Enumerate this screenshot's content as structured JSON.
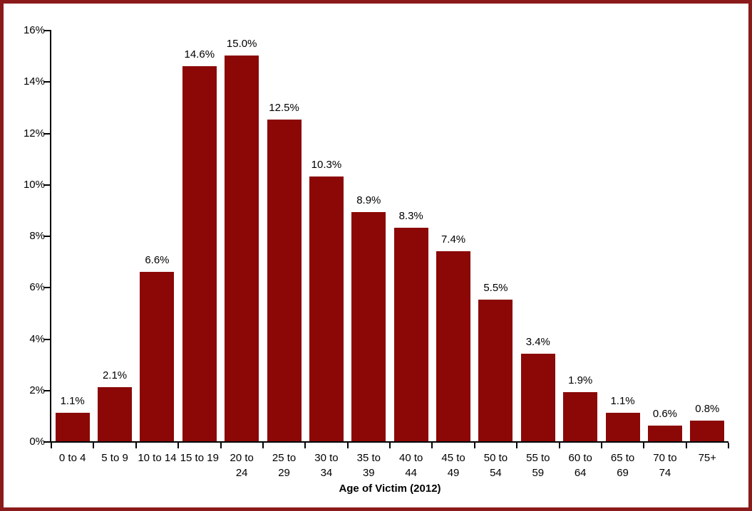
{
  "frame": {
    "border_color": "#8B1B1B",
    "background_color": "#FFFFFF"
  },
  "chart_data": {
    "type": "bar",
    "title": "",
    "xlabel": "Age of Victim (2012)",
    "ylabel": "",
    "bar_color": "#8B0806",
    "text_color": "#000000",
    "grid": false,
    "legend": null,
    "ylim": [
      0,
      16
    ],
    "y_tick_values": [
      0,
      2,
      4,
      6,
      8,
      10,
      12,
      14,
      16
    ],
    "y_tick_labels": [
      "0%",
      "2%",
      "4%",
      "6%",
      "8%",
      "10%",
      "12%",
      "14%",
      "16%"
    ],
    "categories": [
      "0 to 4",
      "5 to 9",
      "10 to 14",
      "15 to 19",
      "20 to 24",
      "25 to 29",
      "30 to 34",
      "35 to 39",
      "40 to 44",
      "45 to 49",
      "50 to 54",
      "55 to 59",
      "60 to 64",
      "65 to 69",
      "70 to 74",
      "75+"
    ],
    "category_label_lines": [
      [
        "0 to 4"
      ],
      [
        "5 to 9"
      ],
      [
        "10 to 14"
      ],
      [
        "15 to 19"
      ],
      [
        "20 to",
        "24"
      ],
      [
        "25 to",
        "29"
      ],
      [
        "30 to",
        "34"
      ],
      [
        "35 to",
        "39"
      ],
      [
        "40 to",
        "44"
      ],
      [
        "45 to",
        "49"
      ],
      [
        "50 to",
        "54"
      ],
      [
        "55 to",
        "59"
      ],
      [
        "60 to",
        "64"
      ],
      [
        "65 to",
        "69"
      ],
      [
        "70 to",
        "74"
      ],
      [
        "75+"
      ]
    ],
    "values": [
      1.1,
      2.1,
      6.6,
      14.6,
      15.0,
      12.5,
      10.3,
      8.9,
      8.3,
      7.4,
      5.5,
      3.4,
      1.9,
      1.1,
      0.6,
      0.8
    ],
    "value_labels": [
      "1.1%",
      "2.1%",
      "6.6%",
      "14.6%",
      "15.0%",
      "12.5%",
      "10.3%",
      "8.9%",
      "8.3%",
      "7.4%",
      "5.5%",
      "3.4%",
      "1.9%",
      "1.1%",
      "0.6%",
      "0.8%"
    ]
  }
}
